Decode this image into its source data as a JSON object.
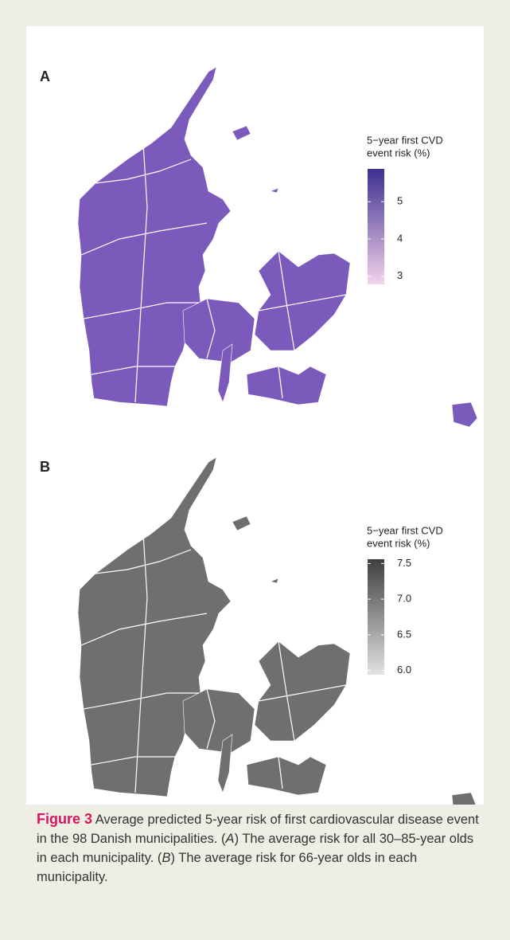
{
  "panels": [
    {
      "label": "A",
      "legend_title": [
        "5−year first CVD",
        "event risk (%)"
      ],
      "colorbar": {
        "lim": [
          2.78,
          5.88
        ],
        "ticks": [
          3,
          4,
          5
        ],
        "low_color": "#f3d3ec",
        "high_color": "#3e2f91"
      },
      "map_color": "#7b5abb"
    },
    {
      "label": "B",
      "legend_title": [
        "5−year first CVD",
        "event risk (%)"
      ],
      "colorbar": {
        "lim": [
          5.94,
          7.56
        ],
        "ticks": [
          {
            "value": 6,
            "label": "6.0"
          },
          6.5,
          {
            "value": 7,
            "label": "7.0"
          },
          7.5
        ],
        "low_color": "#e2e2e2",
        "high_color": "#3f3f3f"
      },
      "map_color": "#6f6f6f"
    }
  ],
  "caption": {
    "label": "Figure 3",
    "parts": [
      "Average predicted 5-year risk of first cardiovascular disease event in the 98 Danish municipalities. (",
      "A",
      ") The average risk for all 30–85-year olds in each municipality. (",
      "B",
      ") The average risk for 66-year olds in each municipality."
    ]
  }
}
